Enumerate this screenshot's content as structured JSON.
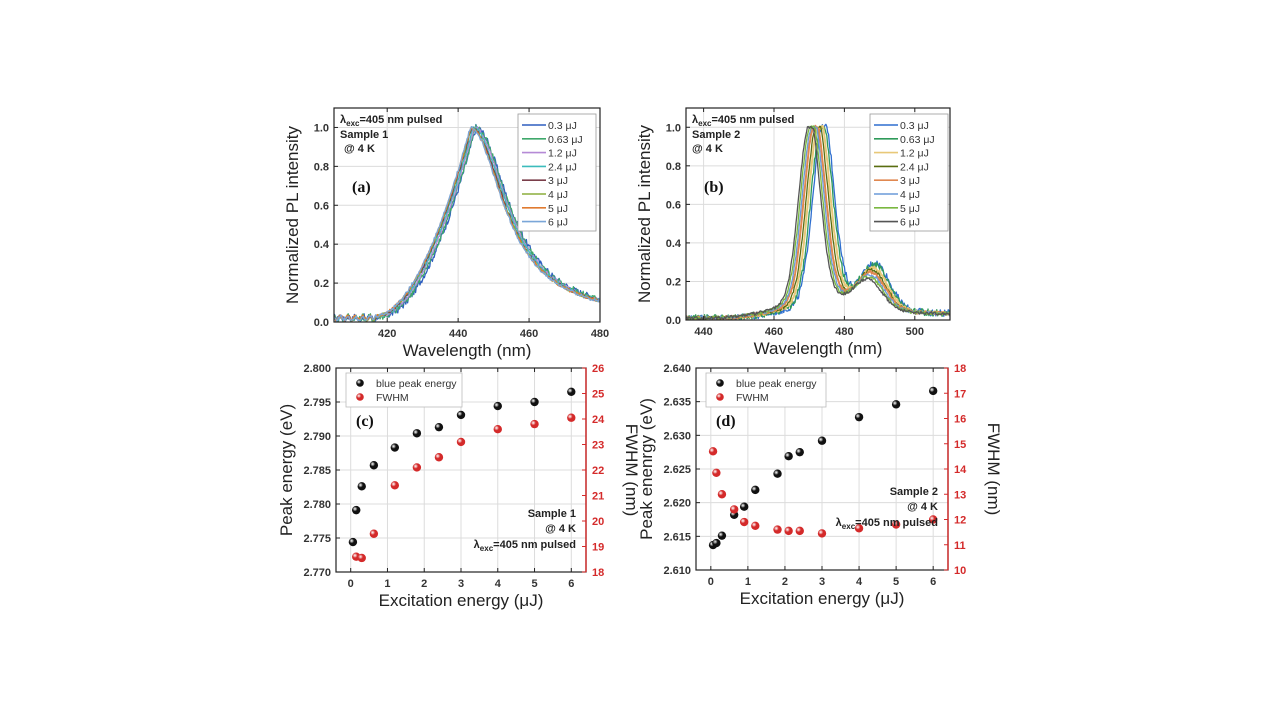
{
  "chart_data": [
    {
      "id": "a",
      "type": "line",
      "panel_label": "(a)",
      "xlabel": "Wavelength (nm)",
      "ylabel": "Normalized PL intensity",
      "xlim": [
        405,
        480
      ],
      "ylim": [
        0,
        1.1
      ],
      "xticks": [
        420,
        440,
        460,
        480
      ],
      "yticks": [
        0.0,
        0.2,
        0.4,
        0.6,
        0.8,
        1.0
      ],
      "ytick_labels": [
        "0.0",
        "0.2",
        "0.4",
        "0.6",
        "0.8",
        "1.0"
      ],
      "grid": true,
      "legend_position": "top-right",
      "annotations": [
        "λexc=405 nm pulsed",
        "Sample 1",
        "@ 4 K"
      ],
      "series": [
        {
          "name": "0.3  μJ",
          "color": "#2f5fbf",
          "peak": 445.0,
          "onset": 418.5
        },
        {
          "name": "0.63 μJ",
          "color": "#3fa86b",
          "peak": 444.8,
          "onset": 418.0
        },
        {
          "name": "1.2  μJ",
          "color": "#b58ad6",
          "peak": 444.5,
          "onset": 417.5
        },
        {
          "name": "2.4  μJ",
          "color": "#3cbcbc",
          "peak": 444.2,
          "onset": 417.0
        },
        {
          "name": "3 μJ",
          "color": "#7a3e4a",
          "peak": 443.8,
          "onset": 416.8
        },
        {
          "name": "4 μJ",
          "color": "#8cae3c",
          "peak": 443.6,
          "onset": 416.6
        },
        {
          "name": "5 μJ",
          "color": "#e07b30",
          "peak": 443.5,
          "onset": 416.5
        },
        {
          "name": "6 μJ",
          "color": "#7aa6d8",
          "peak": 443.4,
          "onset": 416.4
        }
      ]
    },
    {
      "id": "b",
      "type": "line",
      "panel_label": "(b)",
      "xlabel": "Wavelength (nm)",
      "ylabel": "Normalized PL intensity",
      "xlim": [
        435,
        510
      ],
      "ylim": [
        0,
        1.1
      ],
      "xticks": [
        440,
        460,
        480,
        500
      ],
      "yticks": [
        0.0,
        0.2,
        0.4,
        0.6,
        0.8,
        1.0
      ],
      "ytick_labels": [
        "0.0",
        "0.2",
        "0.4",
        "0.6",
        "0.8",
        "1.0"
      ],
      "grid": true,
      "legend_position": "top-right",
      "annotations": [
        "λexc=405 nm pulsed",
        "Sample 2",
        "@ 4 K"
      ],
      "series": [
        {
          "name": "0.3 μJ",
          "color": "#2f6fcf",
          "peak": 474.0
        },
        {
          "name": "0.63 μJ",
          "color": "#2f9a5a",
          "peak": 473.5
        },
        {
          "name": "1.2 μJ",
          "color": "#e8c878",
          "peak": 472.8
        },
        {
          "name": "2.4 μJ",
          "color": "#5a6e10",
          "peak": 472.2
        },
        {
          "name": "3 μJ",
          "color": "#e08850",
          "peak": 471.5
        },
        {
          "name": "4 μJ",
          "color": "#6a9ad8",
          "peak": 471.0
        },
        {
          "name": "5 μJ",
          "color": "#7ab840",
          "peak": 470.5
        },
        {
          "name": "6 μJ",
          "color": "#555555",
          "peak": 470.0
        }
      ]
    },
    {
      "id": "c",
      "type": "scatter",
      "panel_label": "(c)",
      "xlabel": "Excitation energy (μJ)",
      "ylabel": "Peak energy (eV)",
      "y2label": "FWHM (nm)",
      "xlim": [
        -0.4,
        6.4
      ],
      "ylim": [
        2.77,
        2.8
      ],
      "y2lim": [
        18,
        26
      ],
      "xticks": [
        0,
        1,
        2,
        3,
        4,
        5,
        6
      ],
      "yticks": [
        2.77,
        2.775,
        2.78,
        2.785,
        2.79,
        2.795,
        2.8
      ],
      "ytick_labels": [
        "2.770",
        "2.775",
        "2.780",
        "2.785",
        "2.790",
        "2.795",
        "2.800"
      ],
      "y2ticks": [
        18,
        19,
        20,
        21,
        22,
        23,
        24,
        25,
        26
      ],
      "grid": true,
      "legend_position": "top-left",
      "annotations": [
        "Sample 1",
        "@ 4 K",
        "λexc=405 nm pulsed"
      ],
      "series": [
        {
          "name": "blue peak energy",
          "color": "#111111",
          "axis": "left",
          "x": [
            0.06,
            0.15,
            0.3,
            0.63,
            1.2,
            1.8,
            2.4,
            3,
            4,
            5,
            6
          ],
          "y": [
            2.7744,
            2.7791,
            2.7826,
            2.7857,
            2.7883,
            2.7904,
            2.7913,
            2.7931,
            2.7944,
            2.795,
            2.7965
          ]
        },
        {
          "name": "FWHM",
          "color": "#d42a2a",
          "axis": "right",
          "x": [
            0.15,
            0.3,
            0.63,
            1.2,
            1.8,
            2.4,
            3,
            4,
            5,
            6
          ],
          "y": [
            18.6,
            18.55,
            19.5,
            21.4,
            22.1,
            22.5,
            23.1,
            23.6,
            23.8,
            24.05
          ]
        }
      ]
    },
    {
      "id": "d",
      "type": "scatter",
      "panel_label": "(d)",
      "xlabel": "Excitation energy (μJ)",
      "ylabel": "Peak enenrgy (eV)",
      "y2label": "FWHM (nm)",
      "xlim": [
        -0.4,
        6.4
      ],
      "ylim": [
        2.61,
        2.64
      ],
      "y2lim": [
        10,
        18
      ],
      "xticks": [
        0,
        1,
        2,
        3,
        4,
        5,
        6
      ],
      "yticks": [
        2.61,
        2.615,
        2.62,
        2.625,
        2.63,
        2.635,
        2.64
      ],
      "ytick_labels": [
        "2.610",
        "2.615",
        "2.620",
        "2.625",
        "2.630",
        "2.635",
        "2.640"
      ],
      "y2ticks": [
        10,
        11,
        12,
        13,
        14,
        15,
        16,
        17,
        18
      ],
      "grid": true,
      "legend_position": "top-left",
      "annotations": [
        "Sample 2",
        "@ 4 K",
        "λexc=405 nm pulsed"
      ],
      "series": [
        {
          "name": "blue peak energy",
          "color": "#111111",
          "axis": "left",
          "x": [
            0.06,
            0.15,
            0.3,
            0.63,
            0.9,
            1.2,
            1.8,
            2.1,
            2.4,
            3,
            4,
            5,
            6
          ],
          "y": [
            2.6137,
            2.614,
            2.6151,
            2.6182,
            2.6194,
            2.6219,
            2.6243,
            2.6269,
            2.6275,
            2.6292,
            2.6327,
            2.6346,
            2.6366
          ]
        },
        {
          "name": "FWHM",
          "color": "#d42a2a",
          "axis": "right",
          "x": [
            0.06,
            0.15,
            0.3,
            0.63,
            0.9,
            1.2,
            1.8,
            2.1,
            2.4,
            3,
            4,
            5,
            6
          ],
          "y": [
            14.7,
            13.85,
            13.0,
            12.4,
            11.9,
            11.75,
            11.6,
            11.55,
            11.55,
            11.45,
            11.65,
            11.8,
            12.0
          ]
        }
      ]
    }
  ]
}
